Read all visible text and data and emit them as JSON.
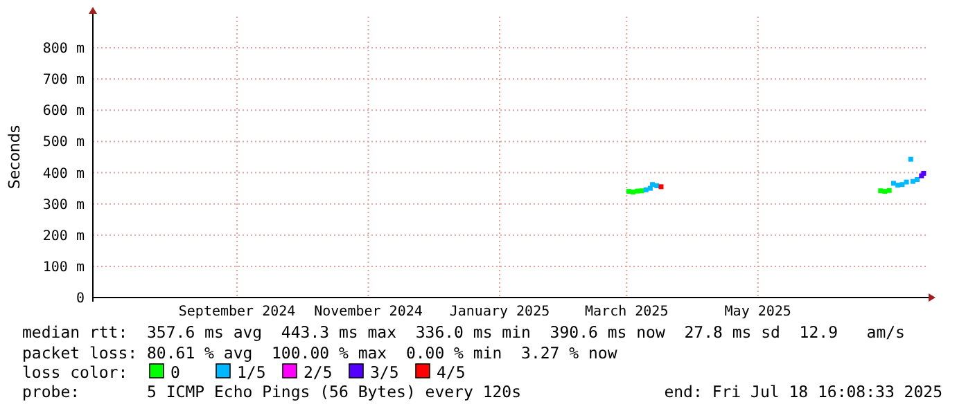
{
  "chart_data": {
    "type": "scatter",
    "marker": "square",
    "ylabel": "Seconds",
    "xlim": [
      "2024-06-26",
      "2025-07-18"
    ],
    "xticks": [
      {
        "value": "2024-09-01",
        "label": "September 2024"
      },
      {
        "value": "2024-11-01",
        "label": "November 2024"
      },
      {
        "value": "2025-01-01",
        "label": "January 2025"
      },
      {
        "value": "2025-03-01",
        "label": "March 2025"
      },
      {
        "value": "2025-05-01",
        "label": "May 2025"
      }
    ],
    "ylim": [
      0,
      900
    ],
    "yticks": [
      0,
      {
        "value": 100,
        "label": "100 m"
      },
      {
        "value": 200,
        "label": "200 m"
      },
      {
        "value": 300,
        "label": "300 m"
      },
      {
        "value": 400,
        "label": "400 m"
      },
      {
        "value": 500,
        "label": "500 m"
      },
      {
        "value": 600,
        "label": "600 m"
      },
      {
        "value": 700,
        "label": "700 m"
      },
      {
        "value": 800,
        "label": "800 m"
      }
    ],
    "grid": true,
    "legend": "bottom",
    "legend_title": "loss color:",
    "series": [
      {
        "name": "0",
        "color": "#00ff00",
        "x": [
          "2025-03-02",
          "2025-03-04",
          "2025-03-06",
          "2025-03-08",
          "2025-06-27",
          "2025-06-29",
          "2025-07-01"
        ],
        "values": [
          340,
          338,
          341,
          342,
          342,
          340,
          343
        ]
      },
      {
        "name": "1/5",
        "color": "#00b8ff",
        "x": [
          "2025-03-10",
          "2025-03-12",
          "2025-03-13",
          "2025-03-15",
          "2025-07-03",
          "2025-07-05",
          "2025-07-07",
          "2025-07-09",
          "2025-07-11",
          "2025-07-12",
          "2025-07-14"
        ],
        "values": [
          345,
          350,
          362,
          358,
          366,
          360,
          362,
          370,
          443,
          372,
          378
        ]
      },
      {
        "name": "2/5",
        "color": "#ff00ff"
      },
      {
        "name": "3/5",
        "color": "#5500ff",
        "x": [
          "2025-07-16",
          "2025-07-17"
        ],
        "values": [
          390,
          398
        ]
      },
      {
        "name": "4/5",
        "color": "#ff0000",
        "x": [
          "2025-03-17"
        ],
        "values": [
          355
        ]
      }
    ],
    "annotations": [
      "median rtt:  357.6 ms avg  443.3 ms max  336.0 ms min  390.6 ms now  27.8 ms sd  12.9   am/s",
      "packet loss: 80.61 % avg  100.00 % max  0.00 % min  3.27 % now",
      "probe:       5 ICMP Echo Pings (56 Bytes) every 120s",
      "end: Fri Jul 18 16:08:33 2025"
    ]
  }
}
